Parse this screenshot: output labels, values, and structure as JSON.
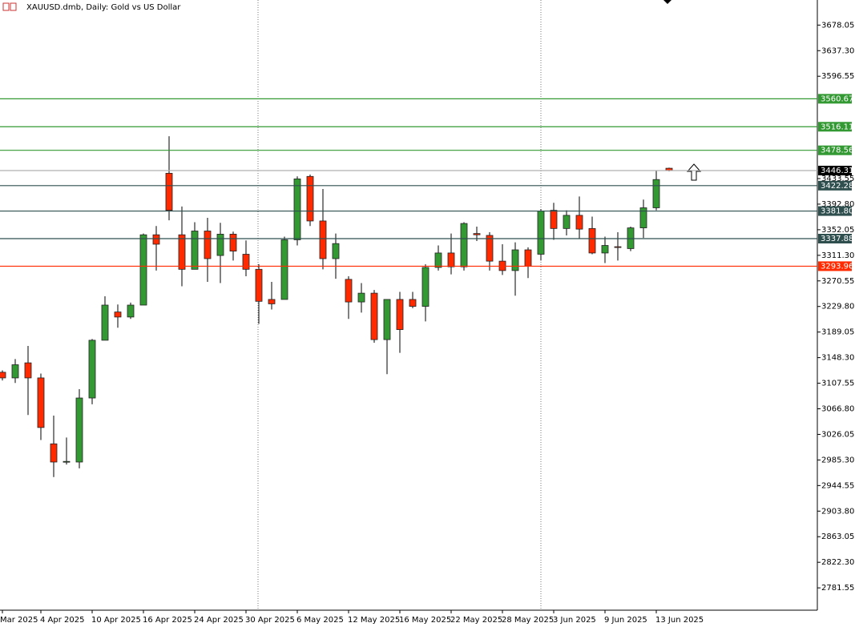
{
  "chart_data": {
    "type": "candlestick",
    "title": "XAUUSD.dmb, Daily:  Gold vs US Dollar",
    "categories": [
      "Mar 2025",
      null,
      null,
      "4 Apr 2025",
      null,
      null,
      null,
      "10 Apr 2025",
      null,
      null,
      null,
      "16 Apr 2025",
      null,
      null,
      null,
      "24 Apr 2025",
      null,
      null,
      null,
      "30 Apr 2025",
      null,
      null,
      null,
      "6 May 2025",
      null,
      null,
      null,
      "12 May 2025",
      null,
      null,
      null,
      "16 May 2025",
      null,
      null,
      null,
      "22 May 2025",
      null,
      null,
      null,
      "28 May 2025",
      null,
      null,
      null,
      "3 Jun 2025",
      null,
      null,
      null,
      "9 Jun 2025",
      null,
      null,
      null,
      "13 Jun 2025",
      null
    ],
    "open": [
      3125,
      3116,
      3140,
      3116,
      3011,
      2982,
      2982,
      3084,
      3176,
      3221,
      3213,
      3232,
      3344,
      3442,
      3344,
      3289,
      3350,
      3311,
      3345,
      3313,
      3289,
      3241,
      3241,
      3336,
      3437,
      3366,
      3306,
      3273,
      3237,
      3251,
      3177,
      3241,
      3241,
      3230,
      3292,
      3315,
      3293,
      3346,
      3343,
      3302,
      3287,
      3320,
      3313,
      3383,
      3354,
      3375,
      3354,
      3315,
      3325,
      3322,
      3355,
      3387,
      3450
    ],
    "high": [
      3128,
      3146,
      3167,
      3123,
      3056,
      3021,
      3098,
      3178,
      3246,
      3233,
      3236,
      3346,
      3358,
      3501,
      3389,
      3364,
      3371,
      3363,
      3349,
      3335,
      3297,
      3269,
      3341,
      3437,
      3440,
      3417,
      3346,
      3278,
      3267,
      3256,
      3241,
      3253,
      3253,
      3297,
      3327,
      3346,
      3364,
      3357,
      3348,
      3329,
      3332,
      3324,
      3385,
      3395,
      3383,
      3405,
      3373,
      3341,
      3348,
      3357,
      3400,
      3447,
      3451
    ],
    "low": [
      3112,
      3108,
      3057,
      3017,
      2958,
      2978,
      2972,
      3074,
      3176,
      3196,
      3210,
      3232,
      3287,
      3367,
      3262,
      3289,
      3269,
      3267,
      3303,
      3278,
      3202,
      3225,
      3241,
      3327,
      3358,
      3289,
      3274,
      3210,
      3220,
      3172,
      3122,
      3156,
      3227,
      3206,
      3287,
      3281,
      3287,
      3334,
      3287,
      3280,
      3247,
      3275,
      3303,
      3336,
      3343,
      3338,
      3313,
      3299,
      3303,
      3318,
      3339,
      3383,
      3445
    ],
    "close": [
      3116,
      3137,
      3116,
      3037,
      2982,
      2983,
      3084,
      3176,
      3232,
      3213,
      3232,
      3344,
      3329,
      3383,
      3289,
      3350,
      3306,
      3345,
      3318,
      3289,
      3238,
      3234,
      3336,
      3433,
      3366,
      3306,
      3330,
      3237,
      3251,
      3177,
      3241,
      3193,
      3230,
      3292,
      3315,
      3293,
      3362,
      3344,
      3302,
      3287,
      3320,
      3294,
      3382,
      3354,
      3375,
      3353,
      3315,
      3327,
      3324,
      3355,
      3387,
      3432,
      3446.31
    ],
    "up_color": "#339933",
    "down_color": "#ff2a00",
    "ylim": [
      2746,
      3718
    ],
    "yticks": [
      3678.05,
      {
        "value": 3637.3,
        "label": "3637.30"
      },
      3596.55,
      3433.55,
      {
        "value": 3392.8,
        "label": "3392.80"
      },
      3352.05,
      {
        "value": 3311.3,
        "label": "3311.30"
      },
      3270.55,
      {
        "value": 3229.8,
        "label": "3229.80"
      },
      3189.05,
      {
        "value": 3148.3,
        "label": "3148.30"
      },
      3107.55,
      {
        "value": 3066.8,
        "label": "3066.80"
      },
      3026.05,
      {
        "value": 2985.3,
        "label": "2985.30"
      },
      2944.55,
      {
        "value": 2903.8,
        "label": "2903.80"
      },
      2863.05,
      {
        "value": 2822.3,
        "label": "2822.30"
      },
      2781.55
    ],
    "levels": [
      {
        "value": 3560.67,
        "color": "#339933"
      },
      {
        "value": 3516.11,
        "color": "#339933"
      },
      {
        "value": 3478.56,
        "color": "#339933"
      },
      {
        "value": 3446.31,
        "color": "#000000"
      },
      {
        "value": 3422.28,
        "color": "#2f4f4f"
      },
      {
        "value": 3381.8,
        "label": "3381.80",
        "color": "#2f4f4f"
      },
      {
        "value": 3337.88,
        "color": "#2f4f4f"
      },
      {
        "value": 3293.96,
        "color": "#ff2a00"
      }
    ]
  }
}
